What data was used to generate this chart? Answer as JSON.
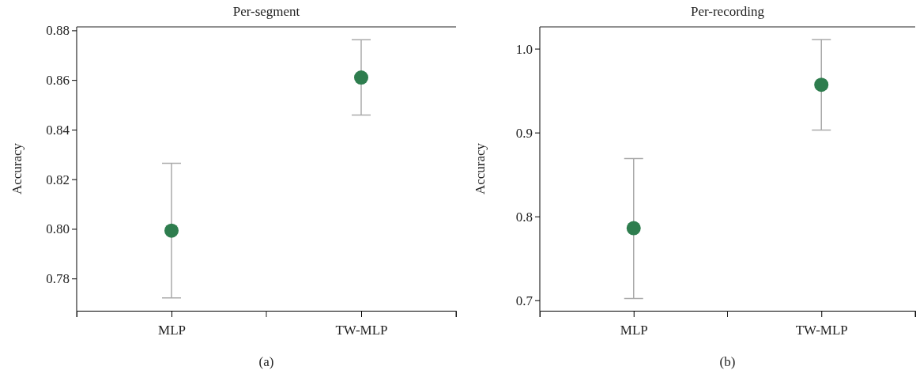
{
  "chart_data": [
    {
      "type": "scatter",
      "title": "Per-segment",
      "ylabel": "Accuracy",
      "categories": [
        "MLP",
        "TW-MLP"
      ],
      "series": [
        {
          "color": "#2e7d4e",
          "values": [
            0.7993,
            0.861
          ],
          "errors": [
            [
              0.7722,
              0.8264
            ],
            [
              0.8459,
              0.8762
            ]
          ]
        }
      ],
      "ylim": [
        0.767,
        0.8814
      ],
      "yticks": [
        {
          "value": 0.78,
          "label": "0.78"
        },
        {
          "value": 0.8,
          "label": "0.80"
        },
        {
          "value": 0.82,
          "label": "0.82"
        },
        {
          "value": 0.84,
          "label": "0.84"
        },
        {
          "value": 0.86,
          "label": "0.86"
        },
        {
          "value": 0.88,
          "label": "0.88"
        }
      ],
      "marker": "circle",
      "grid": false,
      "annotations": [
        "(a)"
      ]
    },
    {
      "type": "scatter",
      "title": "Per-recording",
      "ylabel": "Accuracy",
      "categories": [
        "MLP",
        "TW-MLP"
      ],
      "series": [
        {
          "color": "#2e7d4e",
          "values": [
            0.786,
            0.957
          ],
          "errors": [
            [
              0.702,
              0.869
            ],
            [
              0.903,
              1.011
            ]
          ]
        }
      ],
      "ylim": [
        0.6875,
        1.026
      ],
      "yticks": [
        {
          "value": 0.7,
          "label": "0.7"
        },
        {
          "value": 0.8,
          "label": "0.8"
        },
        {
          "value": 0.9,
          "label": "0.9"
        },
        {
          "value": 1.0,
          "label": "1.0"
        }
      ],
      "marker": "circle",
      "grid": false,
      "annotations": [
        "(b)"
      ]
    }
  ]
}
